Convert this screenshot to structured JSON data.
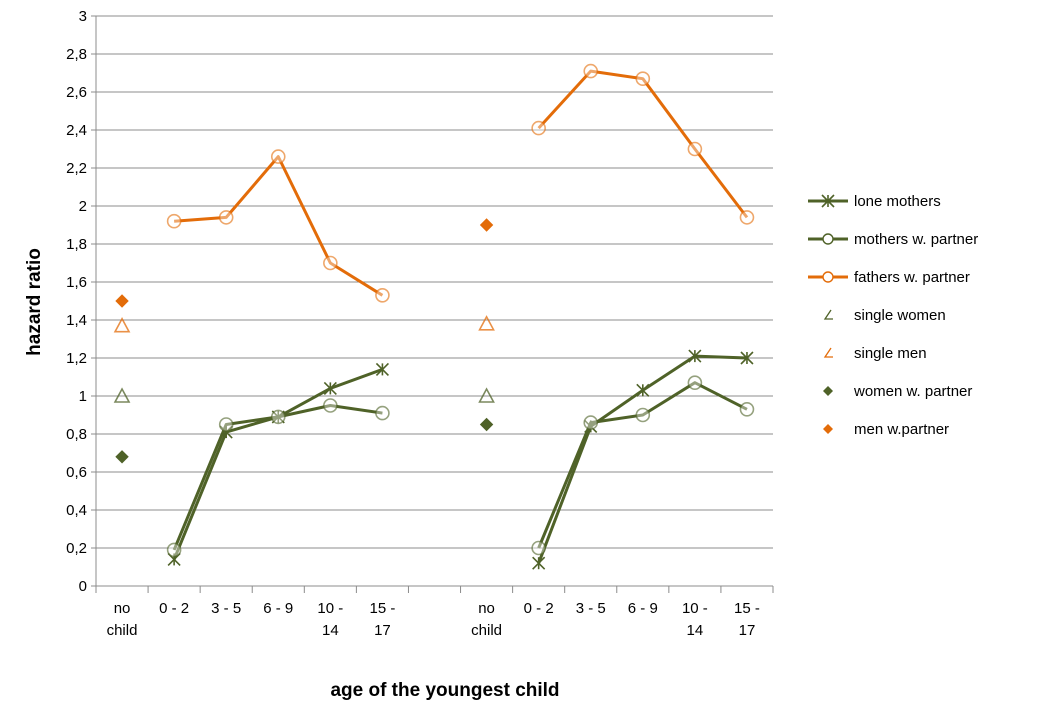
{
  "chart_data": {
    "type": "line",
    "xlabel": "age of the youngest child",
    "ylabel": "hazard ratio",
    "ylim": [
      0,
      3
    ],
    "y_ticks": [
      "0",
      "0,2",
      "0,4",
      "0,6",
      "0,8",
      "1",
      "1,2",
      "1,4",
      "1,6",
      "1,8",
      "2",
      "2,2",
      "2,4",
      "2,6",
      "2,8",
      "3"
    ],
    "categories": [
      [
        "no",
        "child"
      ],
      [
        "0 - 2"
      ],
      [
        "3 - 5"
      ],
      [
        "6 - 9"
      ],
      [
        "10 -",
        "14"
      ],
      [
        "15 -",
        "17"
      ],
      [
        ""
      ],
      [
        "no",
        "child"
      ],
      [
        "0 - 2"
      ],
      [
        "3 - 5"
      ],
      [
        "6 - 9"
      ],
      [
        "10 -",
        "14"
      ],
      [
        "15 -",
        "17"
      ]
    ],
    "grid": "horizontal",
    "legend_position": "right",
    "series": [
      {
        "name": "lone mothers",
        "kind": "line",
        "marker": "asterisk",
        "color": "#4f6228",
        "segments": [
          [
            [
              1,
              0.14
            ],
            [
              2,
              0.81
            ],
            [
              3,
              0.89
            ],
            [
              4,
              1.04
            ],
            [
              5,
              1.14
            ]
          ],
          [
            [
              8,
              0.12
            ],
            [
              9,
              0.84
            ],
            [
              10,
              1.03
            ],
            [
              11,
              1.21
            ],
            [
              12,
              1.2
            ]
          ]
        ]
      },
      {
        "name": "mothers w. partner",
        "kind": "line",
        "marker": "circle",
        "color": "#4f6228",
        "segments": [
          [
            [
              1,
              0.19
            ],
            [
              2,
              0.85
            ],
            [
              3,
              0.89
            ],
            [
              4,
              0.95
            ],
            [
              5,
              0.91
            ]
          ],
          [
            [
              8,
              0.2
            ],
            [
              9,
              0.86
            ],
            [
              10,
              0.9
            ],
            [
              11,
              1.07
            ],
            [
              12,
              0.93
            ]
          ]
        ]
      },
      {
        "name": "fathers w. partner",
        "kind": "line",
        "marker": "circle",
        "color": "#e36c09",
        "segments": [
          [
            [
              1,
              1.92
            ],
            [
              2,
              1.94
            ],
            [
              3,
              2.26
            ],
            [
              4,
              1.7
            ],
            [
              5,
              1.53
            ]
          ],
          [
            [
              8,
              2.41
            ],
            [
              9,
              2.71
            ],
            [
              10,
              2.67
            ],
            [
              11,
              2.3
            ],
            [
              12,
              1.94
            ]
          ]
        ]
      },
      {
        "name": "single women",
        "kind": "marker",
        "marker": "triangle",
        "color": "#4f6228",
        "points": [
          [
            0,
            1.0
          ],
          [
            7,
            1.0
          ]
        ]
      },
      {
        "name": "single men",
        "kind": "marker",
        "marker": "triangle",
        "color": "#e36c09",
        "points": [
          [
            0,
            1.37
          ],
          [
            7,
            1.38
          ]
        ]
      },
      {
        "name": "women w. partner",
        "kind": "marker",
        "marker": "diamond",
        "color": "#4f6228",
        "points": [
          [
            0,
            0.68
          ],
          [
            7,
            0.85
          ]
        ]
      },
      {
        "name": "men w.partner",
        "kind": "marker",
        "marker": "diamond",
        "color": "#e36c09",
        "points": [
          [
            0,
            1.5
          ],
          [
            7,
            1.9
          ]
        ]
      }
    ]
  }
}
